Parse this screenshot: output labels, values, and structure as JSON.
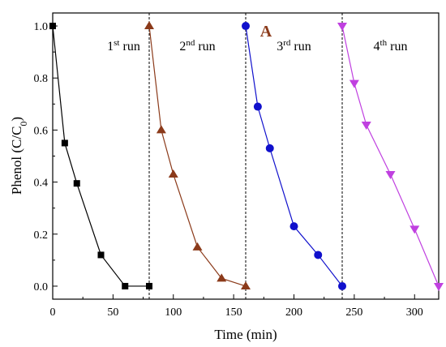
{
  "chart_data": {
    "type": "line",
    "panel_label": "A",
    "xlabel": "Time (min)",
    "ylabel_main": "Phenol (C/C",
    "ylabel_sub": "0",
    "ylabel_close": ")",
    "xlim": [
      0,
      320
    ],
    "ylim": [
      -0.05,
      1.05
    ],
    "xticks": [
      0,
      50,
      100,
      150,
      200,
      250,
      300
    ],
    "xtick_labels": [
      "0",
      "50",
      "100",
      "150",
      "200",
      "250",
      "300"
    ],
    "yticks": [
      0.0,
      0.2,
      0.4,
      0.6,
      0.8,
      1.0
    ],
    "ytick_labels": [
      "0.0",
      "0.2",
      "0.4",
      "0.6",
      "0.8",
      "1.0"
    ],
    "grid": false,
    "run_separators": [
      80,
      160,
      240
    ],
    "run_labels": [
      {
        "prefix": "1",
        "sup": "st",
        "suffix": " run"
      },
      {
        "prefix": "2",
        "sup": "nd",
        "suffix": " run"
      },
      {
        "prefix": "3",
        "sup": "rd",
        "suffix": " run"
      },
      {
        "prefix": "4",
        "sup": "th",
        "suffix": " run"
      }
    ],
    "series": [
      {
        "color": "#000000",
        "marker": "square",
        "x": [
          0,
          10,
          20,
          40,
          60,
          80
        ],
        "y": [
          1.0,
          0.55,
          0.395,
          0.12,
          0.0,
          0.0
        ]
      },
      {
        "color": "#8b3a1a",
        "marker": "triangle-up",
        "x": [
          80,
          90,
          100,
          120,
          140,
          160
        ],
        "y": [
          1.0,
          0.6,
          0.43,
          0.15,
          0.03,
          0.0
        ]
      },
      {
        "color": "#1010cc",
        "marker": "circle",
        "x": [
          160,
          170,
          180,
          200,
          220,
          240
        ],
        "y": [
          1.0,
          0.69,
          0.53,
          0.23,
          0.12,
          0.0
        ]
      },
      {
        "color": "#c040e0",
        "marker": "triangle-down",
        "x": [
          240,
          250,
          260,
          280,
          300,
          320
        ],
        "y": [
          1.0,
          0.78,
          0.62,
          0.43,
          0.22,
          0.0
        ]
      }
    ]
  }
}
